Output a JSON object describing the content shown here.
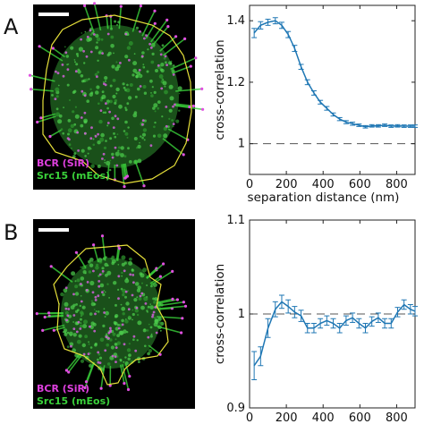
{
  "panels": [
    {
      "letter": "A",
      "image": {
        "legend": [
          "BCR (SiR)",
          "Src15 (mEos)"
        ],
        "legend_colors": [
          "#e040e0",
          "#3ad13a"
        ],
        "outline_color": "#e6e03a"
      }
    },
    {
      "letter": "B",
      "image": {
        "legend": [
          "BCR (SiR)",
          "Src15 (mEos)"
        ],
        "legend_colors": [
          "#e040e0",
          "#3ad13a"
        ],
        "outline_color": "#e6e03a"
      }
    }
  ],
  "chart_data": [
    {
      "type": "line",
      "xlabel": "separation distance (nm)",
      "ylabel": "cross-correlation",
      "xlim": [
        0,
        900
      ],
      "ylim": [
        0.9,
        1.45
      ],
      "xticks": [
        0,
        200,
        400,
        600,
        800
      ],
      "yticks": [
        1,
        1.2,
        1.4
      ],
      "ytick_labels": [
        "1",
        "1.2",
        "1.4"
      ],
      "reference_line": 1,
      "color": "#1f77b4",
      "x": [
        25,
        60,
        100,
        140,
        175,
        210,
        245,
        280,
        315,
        350,
        385,
        420,
        455,
        490,
        525,
        560,
        595,
        630,
        665,
        700,
        735,
        770,
        805,
        840,
        875,
        900
      ],
      "values": [
        1.36,
        1.385,
        1.395,
        1.4,
        1.385,
        1.355,
        1.31,
        1.25,
        1.2,
        1.165,
        1.135,
        1.115,
        1.095,
        1.08,
        1.07,
        1.065,
        1.06,
        1.055,
        1.058,
        1.058,
        1.06,
        1.057,
        1.058,
        1.057,
        1.057,
        1.057
      ],
      "errors": [
        0.015,
        0.012,
        0.01,
        0.01,
        0.01,
        0.01,
        0.01,
        0.008,
        0.008,
        0.007,
        0.006,
        0.006,
        0.005,
        0.005,
        0.005,
        0.005,
        0.004,
        0.004,
        0.004,
        0.004,
        0.004,
        0.004,
        0.004,
        0.004,
        0.004,
        0.004
      ]
    },
    {
      "type": "line",
      "xlabel": "separation distance (nm)",
      "ylabel": "cross-correlation",
      "xlim": [
        0,
        900
      ],
      "ylim": [
        0.9,
        1.1
      ],
      "xticks": [
        0,
        200,
        400,
        600,
        800
      ],
      "yticks": [
        0.9,
        1,
        1.1
      ],
      "ytick_labels": [
        "0.9",
        "1",
        "1.1"
      ],
      "reference_line": 1,
      "color": "#1f77b4",
      "x": [
        25,
        60,
        100,
        140,
        175,
        210,
        245,
        280,
        315,
        350,
        385,
        420,
        455,
        490,
        525,
        560,
        595,
        630,
        665,
        700,
        735,
        770,
        805,
        840,
        875,
        900
      ],
      "values": [
        0.945,
        0.955,
        0.985,
        1.005,
        1.013,
        1.008,
        1.002,
        0.998,
        0.985,
        0.985,
        0.99,
        0.993,
        0.99,
        0.985,
        0.993,
        0.996,
        0.99,
        0.985,
        0.992,
        0.996,
        0.99,
        0.99,
        1.002,
        1.01,
        1.005,
        1.003
      ],
      "errors": [
        0.015,
        0.01,
        0.01,
        0.008,
        0.007,
        0.007,
        0.006,
        0.006,
        0.005,
        0.005,
        0.005,
        0.005,
        0.005,
        0.005,
        0.005,
        0.005,
        0.005,
        0.005,
        0.005,
        0.005,
        0.005,
        0.005,
        0.005,
        0.005,
        0.005,
        0.005
      ]
    }
  ]
}
